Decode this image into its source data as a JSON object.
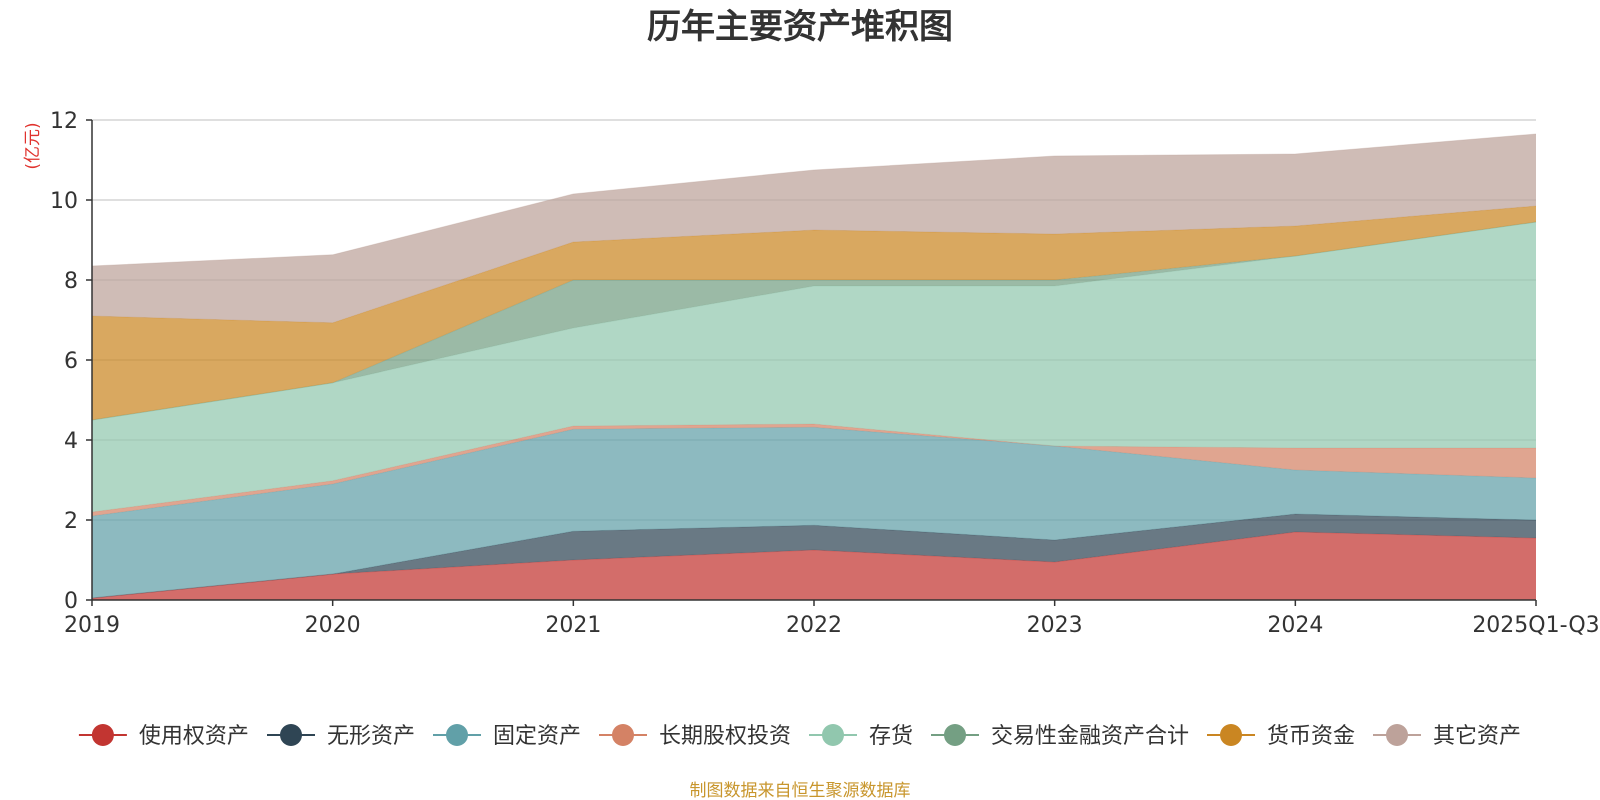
{
  "chart_data": {
    "type": "area",
    "stacked": true,
    "title": "历年主要资产堆积图",
    "unit_label": "(亿元)",
    "xlabel": "",
    "ylabel": "(亿元)",
    "categories": [
      "2019",
      "2020",
      "2021",
      "2022",
      "2023",
      "2024",
      "2025Q1-Q3"
    ],
    "ylim": [
      0,
      12
    ],
    "yticks": [
      0,
      2,
      4,
      6,
      8,
      10,
      12
    ],
    "grid": true,
    "legend_position": "bottom",
    "series": [
      {
        "name": "使用权资产",
        "color": "#c23531",
        "values": [
          0.05,
          0.65,
          1.0,
          1.25,
          0.95,
          1.7,
          1.55
        ]
      },
      {
        "name": "无形资产",
        "color": "#2f4554",
        "values": [
          0.0,
          0.0,
          0.72,
          0.62,
          0.55,
          0.45,
          0.45
        ]
      },
      {
        "name": "固定资产",
        "color": "#61a0a8",
        "values": [
          2.05,
          2.25,
          2.55,
          2.45,
          2.35,
          1.1,
          1.05
        ]
      },
      {
        "name": "长期股权投资",
        "color": "#d48265",
        "values": [
          0.1,
          0.08,
          0.08,
          0.08,
          0.0,
          0.55,
          0.75
        ]
      },
      {
        "name": "存货",
        "color": "#91c7ae",
        "values": [
          2.3,
          2.45,
          2.45,
          3.45,
          4.0,
          4.8,
          5.65
        ]
      },
      {
        "name": "交易性金融资产合计",
        "color": "#749f83",
        "values": [
          0.0,
          0.0,
          1.2,
          0.15,
          0.15,
          0.0,
          0.0
        ]
      },
      {
        "name": "货币资金",
        "color": "#ca8622",
        "values": [
          2.6,
          1.5,
          0.95,
          1.25,
          1.15,
          0.75,
          0.4
        ]
      },
      {
        "name": "其它资产",
        "color": "#bda29a",
        "values": [
          1.25,
          1.7,
          1.2,
          1.5,
          1.95,
          1.8,
          1.8
        ]
      }
    ]
  },
  "footer": {
    "source": "制图数据来自恒生聚源数据库"
  }
}
